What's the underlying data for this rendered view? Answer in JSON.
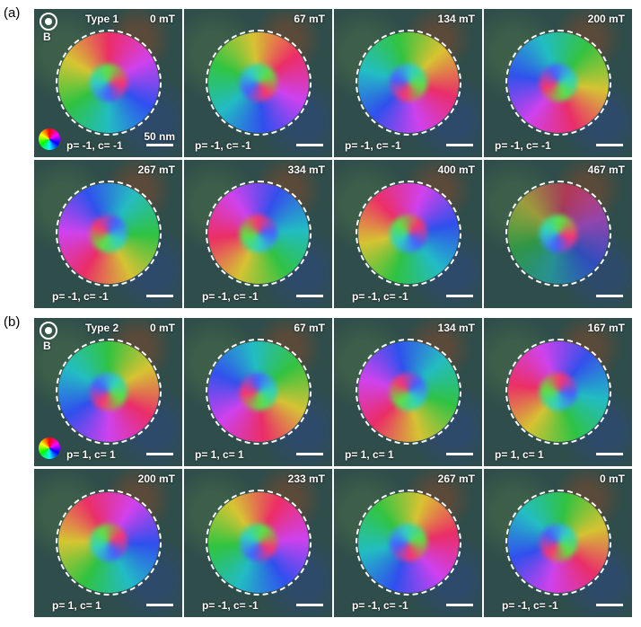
{
  "panels": [
    {
      "label": "(a)",
      "tiles": [
        {
          "field": "0 mT",
          "type": "Type 1",
          "b": "B",
          "scale": "50 nm",
          "state": "p= -1, c= -1"
        },
        {
          "field": "67 mT",
          "state": "p= -1, c= -1"
        },
        {
          "field": "134 mT",
          "state": "p= -1, c= -1"
        },
        {
          "field": "200 mT",
          "state": "p= -1, c= -1"
        },
        {
          "field": "267 mT",
          "state": "p= -1, c= -1"
        },
        {
          "field": "334 mT",
          "state": "p= -1, c= -1"
        },
        {
          "field": "400 mT",
          "state": "p= -1, c= -1"
        },
        {
          "field": "467 mT"
        }
      ]
    },
    {
      "label": "(b)",
      "tiles": [
        {
          "field": "0 mT",
          "type": "Type 2",
          "b": "B",
          "state": "p= 1, c= 1"
        },
        {
          "field": "67 mT",
          "state": "p= 1, c= 1"
        },
        {
          "field": "134 mT",
          "state": "p= 1, c= 1"
        },
        {
          "field": "167 mT",
          "state": "p= 1, c= 1"
        },
        {
          "field": "200 mT",
          "state": "p= 1, c= 1"
        },
        {
          "field": "233 mT",
          "state": "p= -1, c= -1"
        },
        {
          "field": "267 mT",
          "state": "p= -1, c= -1"
        },
        {
          "field": "0 mT",
          "state": "p= -1, c= -1"
        }
      ]
    }
  ]
}
